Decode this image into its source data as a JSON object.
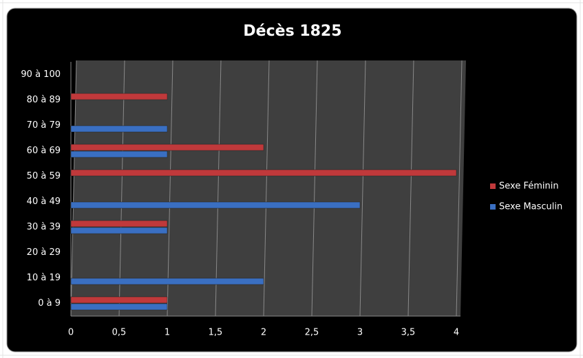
{
  "chart_data": {
    "type": "hbar",
    "title": "Décès 1825",
    "categories": [
      "0 à 9",
      "10 à 19",
      "20 à 29",
      "30 à 39",
      "40 à 49",
      "50 à 59",
      "60 à 69",
      "70 à 79",
      "80 à 89",
      "90 à 100"
    ],
    "series": [
      {
        "name": "Sexe Féminin",
        "color": "#c0393b",
        "values": [
          1,
          0,
          0,
          1,
          0,
          4,
          2,
          0,
          1,
          0
        ]
      },
      {
        "name": "Sexe Masculin",
        "color": "#3a6fc2",
        "values": [
          1,
          2,
          0,
          1,
          3,
          0,
          1,
          1,
          0,
          0
        ]
      }
    ],
    "xlim": [
      0,
      4
    ],
    "xticks": [
      0,
      {
        "value": 0.5,
        "label": "0,5"
      },
      1,
      {
        "value": 1.5,
        "label": "1,5"
      },
      2,
      {
        "value": 2.5,
        "label": "2,5"
      },
      3,
      {
        "value": 3.5,
        "label": "3,5"
      },
      4
    ],
    "grid": true,
    "legend": "right"
  }
}
